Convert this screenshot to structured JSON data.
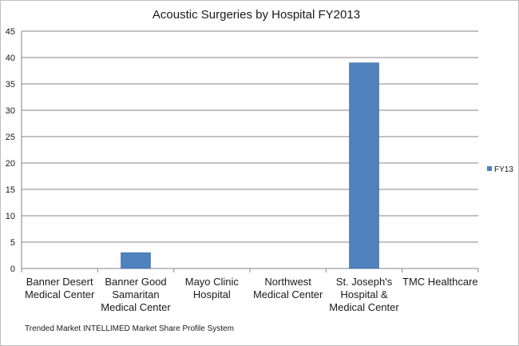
{
  "chart_data": {
    "type": "bar",
    "title": "Acoustic Surgeries by Hospital  FY2013",
    "categories": [
      [
        "Banner Desert",
        "Medical Center"
      ],
      [
        "Banner Good",
        "Samaritan",
        "Medical Center"
      ],
      [
        "Mayo Clinic",
        "Hospital"
      ],
      [
        "Northwest",
        "Medical Center"
      ],
      [
        "St. Joseph's",
        "Hospital &",
        "Medical Center"
      ],
      [
        "TMC Healthcare"
      ]
    ],
    "series": [
      {
        "name": "FY13",
        "values": [
          0,
          3,
          0,
          0,
          39,
          0
        ]
      }
    ],
    "ylim": [
      0,
      45
    ],
    "yticks": [
      0,
      5,
      10,
      15,
      20,
      25,
      30,
      35,
      40,
      45
    ],
    "grid": true,
    "legend": "right",
    "colors": {
      "bar": "#4f81bd",
      "grid": "#868686",
      "axis": "#868686"
    }
  },
  "footer": {
    "source": "Trended Market INTELLIMED Market Share Profile System"
  }
}
